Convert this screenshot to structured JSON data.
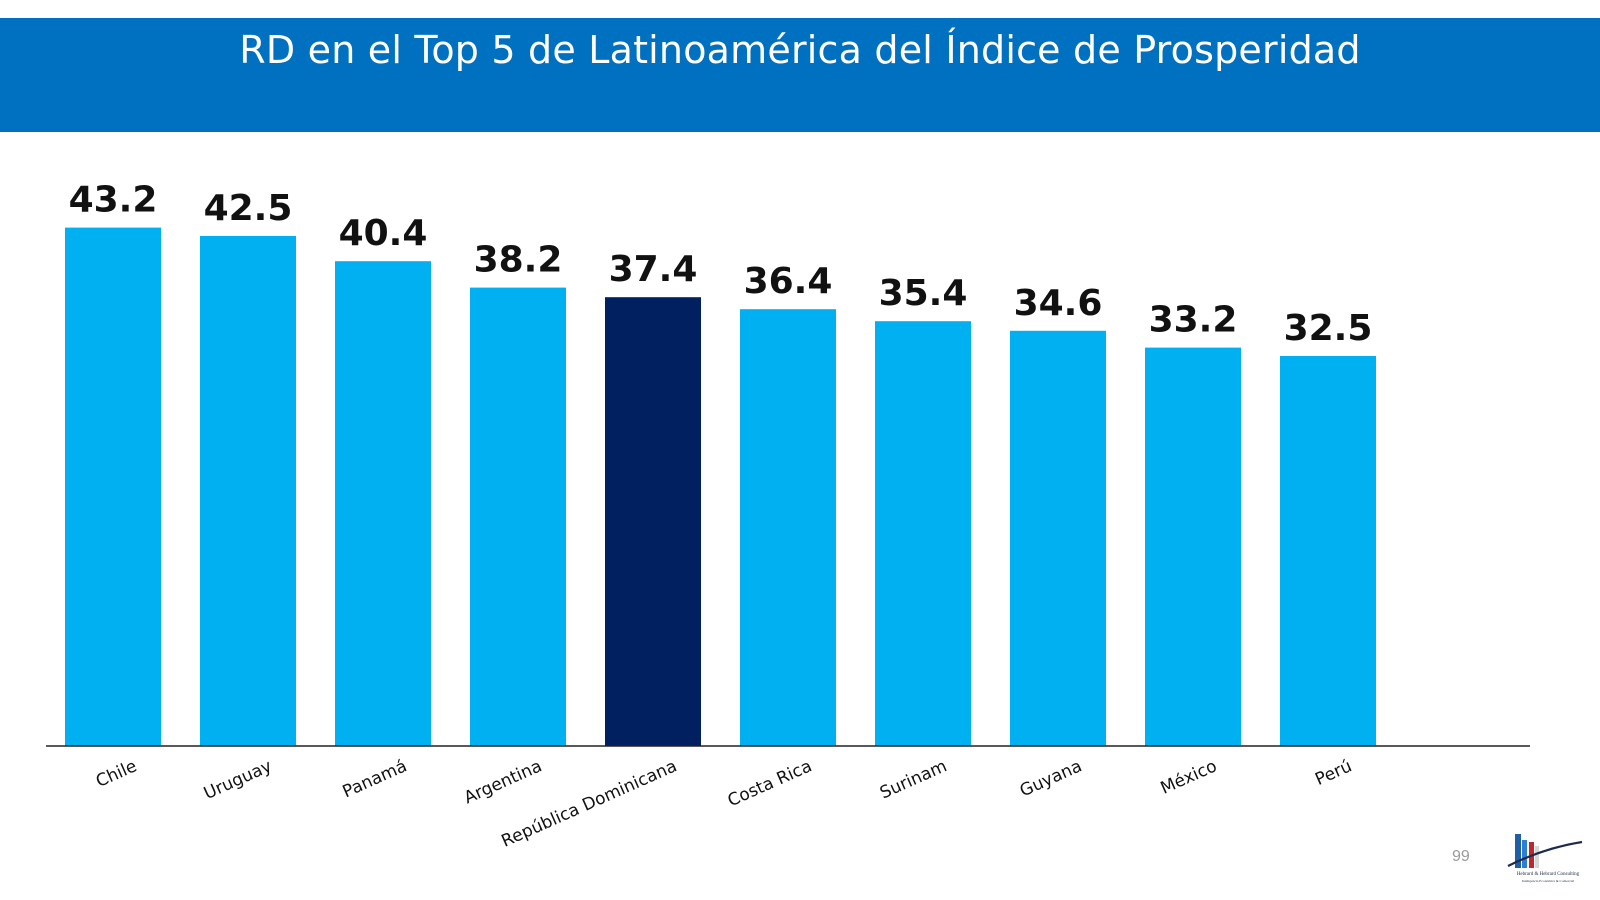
{
  "header": {
    "title": "RD en el Top 5 de Latinoamérica del Índice de Prosperidad",
    "background_color": "#0070c0"
  },
  "chart_data": {
    "type": "bar",
    "title": "RD en el Top 5 de Latinoamérica del Índice de Prosperidad",
    "categories": [
      "Chile",
      "Uruguay",
      "Panamá",
      "Argentina",
      "República Dominicana",
      "Costa Rica",
      "Surinam",
      "Guyana",
      "México",
      "Perú"
    ],
    "values": [
      43.2,
      42.5,
      40.4,
      38.2,
      37.4,
      36.4,
      35.4,
      34.6,
      33.2,
      32.5
    ],
    "value_labels": [
      "43.2",
      "42.5",
      "40.4",
      "38.2",
      "37.4",
      "36.4",
      "35.4",
      "34.6",
      "33.2",
      "32.5"
    ],
    "ylim": [
      0,
      50
    ],
    "xlabel": "",
    "ylabel": "",
    "grid": false,
    "legend": "none",
    "bar_color": "#00b0f0",
    "highlight_category": "República Dominicana",
    "highlight_color": "#002060"
  },
  "footer": {
    "page_number": "99",
    "logo_text": "Hebrard & Hebrard Consulting",
    "logo_subtext": "Inteligencia Económica & Comercial",
    "logo_icon": "building-logo-icon"
  }
}
